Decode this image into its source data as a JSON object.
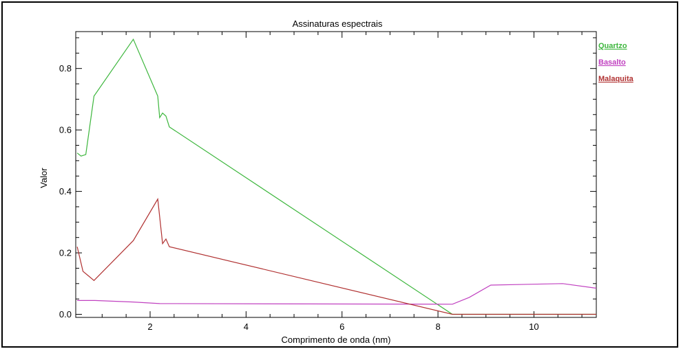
{
  "chart_data": {
    "type": "line",
    "title": "Assinaturas espectrais",
    "xlabel": "Comprimento de onda (nm)",
    "ylabel": "Valor",
    "xlim": [
      0.45,
      11.3
    ],
    "ylim": [
      -0.01,
      0.92
    ],
    "xticks": [
      2,
      4,
      6,
      8,
      10
    ],
    "xtick_labels": [
      "2",
      "4",
      "6",
      "8",
      "10"
    ],
    "yticks": [
      0.0,
      0.2,
      0.4,
      0.6,
      0.8
    ],
    "ytick_labels": [
      "0.0",
      "0.2",
      "0.4",
      "0.6",
      "0.8"
    ],
    "grid": false,
    "legend_position": "outside-right-top",
    "series": [
      {
        "name": "Quartzo",
        "color": "#3cb63c",
        "x": [
          0.48,
          0.56,
          0.66,
          0.83,
          1.65,
          2.16,
          2.2,
          2.26,
          2.33,
          2.4,
          8.3,
          11.3
        ],
        "y": [
          0.525,
          0.515,
          0.52,
          0.71,
          0.895,
          0.71,
          0.64,
          0.655,
          0.645,
          0.61,
          0.0,
          0.0
        ]
      },
      {
        "name": "Basalto",
        "color": "#c040c0",
        "x": [
          0.48,
          0.85,
          1.65,
          2.2,
          8.3,
          8.65,
          9.1,
          10.6,
          11.3
        ],
        "y": [
          0.045,
          0.045,
          0.04,
          0.035,
          0.033,
          0.055,
          0.095,
          0.1,
          0.085
        ]
      },
      {
        "name": "Malaquita",
        "color": "#b03030",
        "x": [
          0.48,
          0.6,
          0.83,
          1.65,
          2.16,
          2.26,
          2.33,
          2.4,
          8.3,
          11.3
        ],
        "y": [
          0.22,
          0.14,
          0.11,
          0.24,
          0.375,
          0.23,
          0.245,
          0.22,
          0.0,
          0.0
        ]
      }
    ]
  }
}
